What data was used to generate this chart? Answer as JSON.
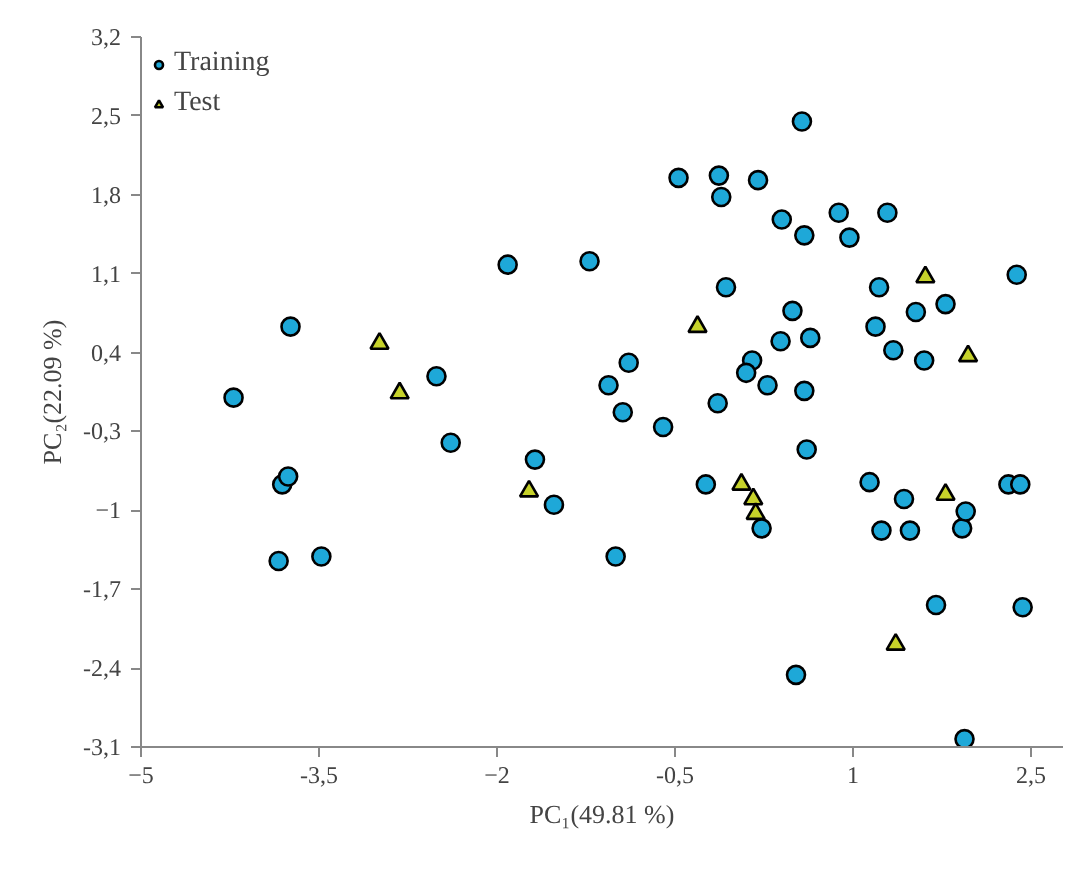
{
  "chart_data": {
    "type": "scatter",
    "xlabel": "PC₁(49.81 %)",
    "ylabel": "PC₂(22.09 %)",
    "xlim": [
      -5,
      2.77
    ],
    "ylim": [
      -3.1,
      3.2
    ],
    "xticks": [
      -5,
      {
        "value": -3.5,
        "label": "-3,5"
      },
      -2,
      {
        "value": -0.5,
        "label": "-0,5"
      },
      1,
      {
        "value": 2.5,
        "label": "2,5"
      }
    ],
    "yticks": [
      {
        "value": 3.2,
        "label": "3,2"
      },
      {
        "value": 2.5,
        "label": "2,5"
      },
      {
        "value": 1.8,
        "label": "1,8"
      },
      {
        "value": 1.1,
        "label": "1,1"
      },
      {
        "value": 0.4,
        "label": "0,4"
      },
      {
        "value": -0.3,
        "label": "-0,3"
      },
      -1,
      {
        "value": -1.7,
        "label": "-1,7"
      },
      {
        "value": -2.4,
        "label": "-2,4"
      },
      {
        "value": -3.1,
        "label": "-3,1"
      }
    ],
    "grid": false,
    "legend": "top left",
    "series": [
      {
        "name": "Training",
        "color": "#1ea8d8",
        "marker": "circle",
        "x": [
          -4.22,
          -3.74,
          -3.81,
          -3.76,
          -3.84,
          -3.48,
          -2.51,
          -2.39,
          -1.91,
          -1.68,
          -1.52,
          -1.22,
          -1.06,
          -0.89,
          -0.94,
          -1.0,
          -0.6,
          -0.47,
          -0.13,
          -0.11,
          0.2,
          0.4,
          0.57,
          0.59,
          0.88,
          0.97,
          1.29,
          -0.07,
          0.49,
          0.64,
          0.39,
          0.15,
          0.1,
          0.28,
          0.59,
          -0.14,
          0.61,
          -0.24,
          0.23,
          0.52,
          1.22,
          1.19,
          1.34,
          1.53,
          1.78,
          1.6,
          2.38,
          1.14,
          1.43,
          1.24,
          1.48,
          1.92,
          1.95,
          2.31,
          2.41,
          1.7,
          2.43,
          1.94
        ],
        "values": [
          0.0,
          0.63,
          -0.77,
          -0.7,
          -1.45,
          -1.41,
          0.19,
          -0.4,
          1.18,
          -0.55,
          -0.95,
          1.21,
          0.11,
          0.31,
          -0.13,
          -1.41,
          -0.26,
          1.95,
          1.97,
          1.78,
          1.93,
          1.58,
          2.45,
          1.44,
          1.64,
          1.42,
          1.64,
          0.98,
          0.77,
          0.53,
          0.5,
          0.33,
          0.22,
          0.11,
          0.06,
          -0.05,
          -0.46,
          -0.77,
          -1.16,
          -2.46,
          0.98,
          0.63,
          0.42,
          0.76,
          0.83,
          0.33,
          1.09,
          -0.75,
          -0.9,
          -1.18,
          -1.18,
          -1.16,
          -1.01,
          -0.77,
          -0.77,
          -1.84,
          -1.86,
          -3.03
        ]
      },
      {
        "name": "Test",
        "color": "#c6d22a",
        "marker": "triangle",
        "x": [
          -2.99,
          -2.82,
          -1.73,
          -0.31,
          1.61,
          1.97,
          0.06,
          0.16,
          0.18,
          1.78,
          1.36
        ],
        "values": [
          0.48,
          0.04,
          -0.83,
          0.63,
          1.07,
          0.37,
          -0.77,
          -0.9,
          -1.03,
          -0.86,
          -2.19
        ]
      }
    ]
  }
}
